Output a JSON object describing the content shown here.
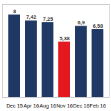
{
  "chart_data": {
    "type": "bar",
    "categories": [
      "Dec 15",
      "Apr 16",
      "Aug 16",
      "Nov 16",
      "Dec 16",
      "Feb 16"
    ],
    "values": [
      8,
      7.42,
      7.25,
      5.38,
      6.9,
      6.58
    ],
    "value_labels": [
      "8",
      "7,42",
      "7,25",
      "5,38",
      "6,9",
      "6,58"
    ],
    "colors": [
      "#1f3864",
      "#1f3864",
      "#1f3864",
      "#e3191f",
      "#1f3864",
      "#1f3864"
    ],
    "ylim": [
      0,
      9
    ],
    "yticks": [],
    "grid": false,
    "data_labels": true,
    "tick_labels": "x"
  }
}
